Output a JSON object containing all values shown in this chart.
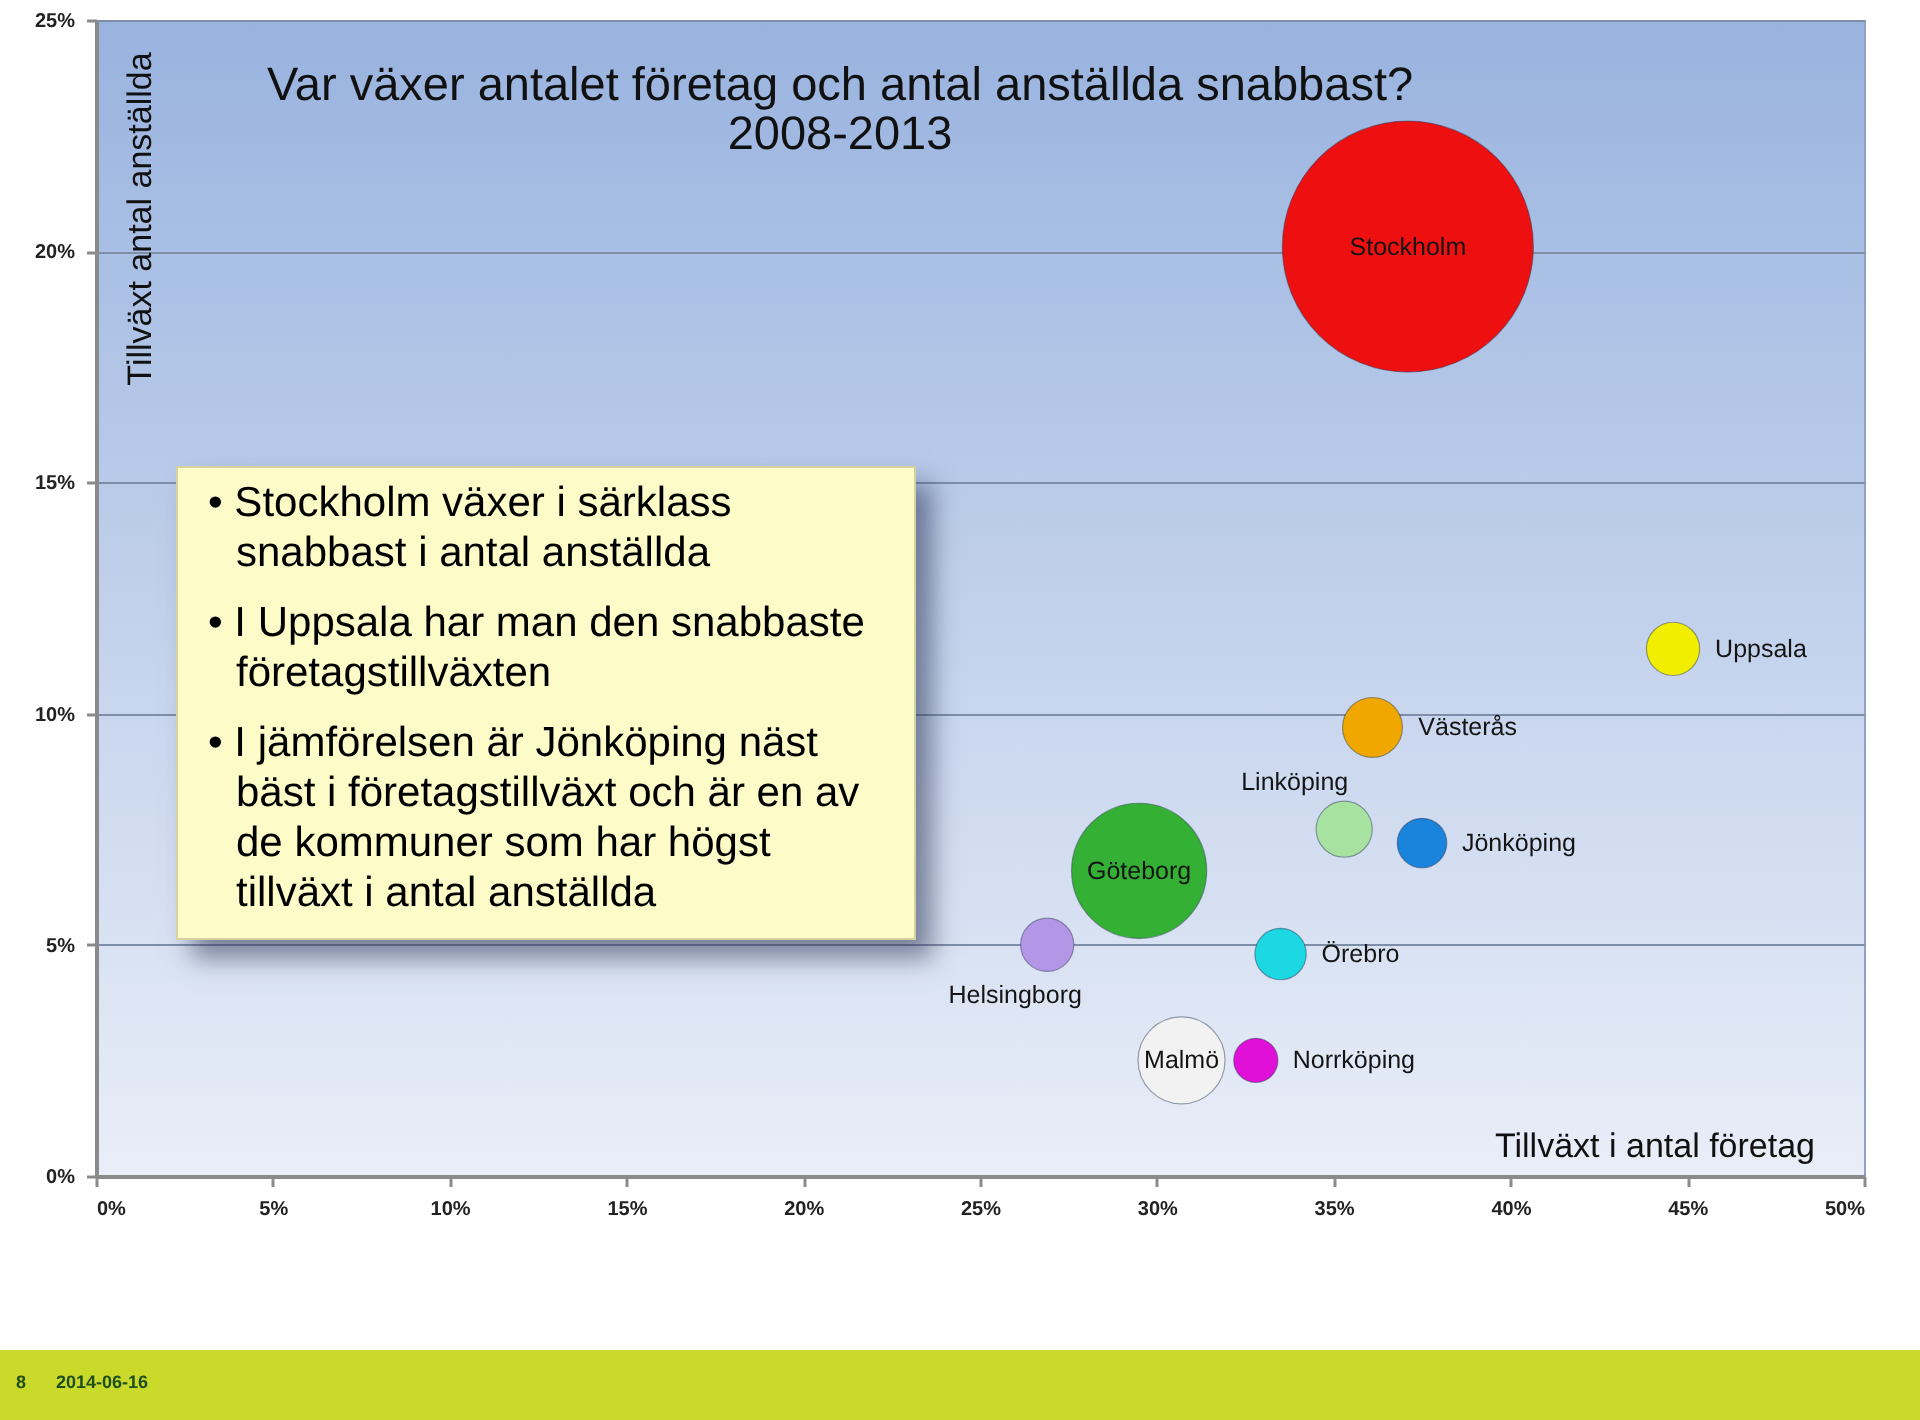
{
  "chart_data": {
    "type": "bubble",
    "title": "Var växer antalet företag och antal anställda snabbast?",
    "subtitle": "2008-2013",
    "xlabel": "Tillväxt i antal företag",
    "ylabel": "Tillväxt antal anställda",
    "xlim": [
      0,
      50
    ],
    "xticks": [
      {
        "value": 0,
        "label": "0%"
      },
      {
        "value": 5,
        "label": "5%"
      },
      {
        "value": 10,
        "label": "10%"
      },
      {
        "value": 15,
        "label": "15%"
      },
      {
        "value": 20,
        "label": "20%"
      },
      {
        "value": 25,
        "label": "25%"
      },
      {
        "value": 30,
        "label": "30%"
      },
      {
        "value": 35,
        "label": "35%"
      },
      {
        "value": 40,
        "label": "40%"
      },
      {
        "value": 45,
        "label": "45%"
      },
      {
        "value": 50,
        "label": "50%"
      }
    ],
    "ylim": [
      0,
      25
    ],
    "yticks": [
      {
        "value": 0,
        "label": "0%"
      },
      {
        "value": 5,
        "label": "5%"
      },
      {
        "value": 10,
        "label": "10%"
      },
      {
        "value": 15,
        "label": "15%"
      },
      {
        "value": 20,
        "label": "20%"
      },
      {
        "value": 25,
        "label": "25%"
      }
    ],
    "grid": "y",
    "series": [
      {
        "name": "Stockholm",
        "color": "#ee1010",
        "x": [
          37.1
        ],
        "values": [
          20.1
        ],
        "sizes": [
          1
        ]
      },
      {
        "name": "Uppsala",
        "color": "#f2ee00",
        "x": [
          44.6
        ],
        "values": [
          11.4
        ],
        "sizes": [
          0.045
        ]
      },
      {
        "name": "Västerås",
        "color": "#f0a800",
        "x": [
          36.1
        ],
        "values": [
          9.7
        ],
        "sizes": [
          0.057
        ]
      },
      {
        "name": "Linköping",
        "color": "#a8e2a0",
        "x": [
          35.3
        ],
        "values": [
          7.5
        ],
        "sizes": [
          0.05
        ]
      },
      {
        "name": "Jönköping",
        "color": "#1a84dc",
        "x": [
          37.5
        ],
        "values": [
          7.2
        ],
        "sizes": [
          0.039
        ]
      },
      {
        "name": "Göteborg",
        "color": "#34b034",
        "x": [
          29.5
        ],
        "values": [
          6.6
        ],
        "sizes": [
          0.29
        ]
      },
      {
        "name": "Helsingborg",
        "color": "#b496e6",
        "x": [
          26.9
        ],
        "values": [
          5.0
        ],
        "sizes": [
          0.045
        ]
      },
      {
        "name": "Örebro",
        "color": "#1cd8e2",
        "x": [
          33.5
        ],
        "values": [
          4.8
        ],
        "sizes": [
          0.042
        ]
      },
      {
        "name": "Malmö",
        "color": "#f2f2f2",
        "x": [
          30.7
        ],
        "values": [
          2.5
        ],
        "sizes": [
          0.12
        ]
      },
      {
        "name": "Norrköping",
        "color": "#e010d8",
        "x": [
          32.8
        ],
        "values": [
          2.5
        ],
        "sizes": [
          0.031
        ]
      }
    ],
    "annotations": [
      "• Stockholm växer i särklass snabbast i antal anställda",
      "• I Uppsala har man den snabbaste företagstillväxten",
      "• I jämförelsen är Jönköping näst bäst i företagstillväxt och är en av de kommuner som har högst tillväxt i antal anställda",
      "8",
      "2014-06-16"
    ]
  }
}
